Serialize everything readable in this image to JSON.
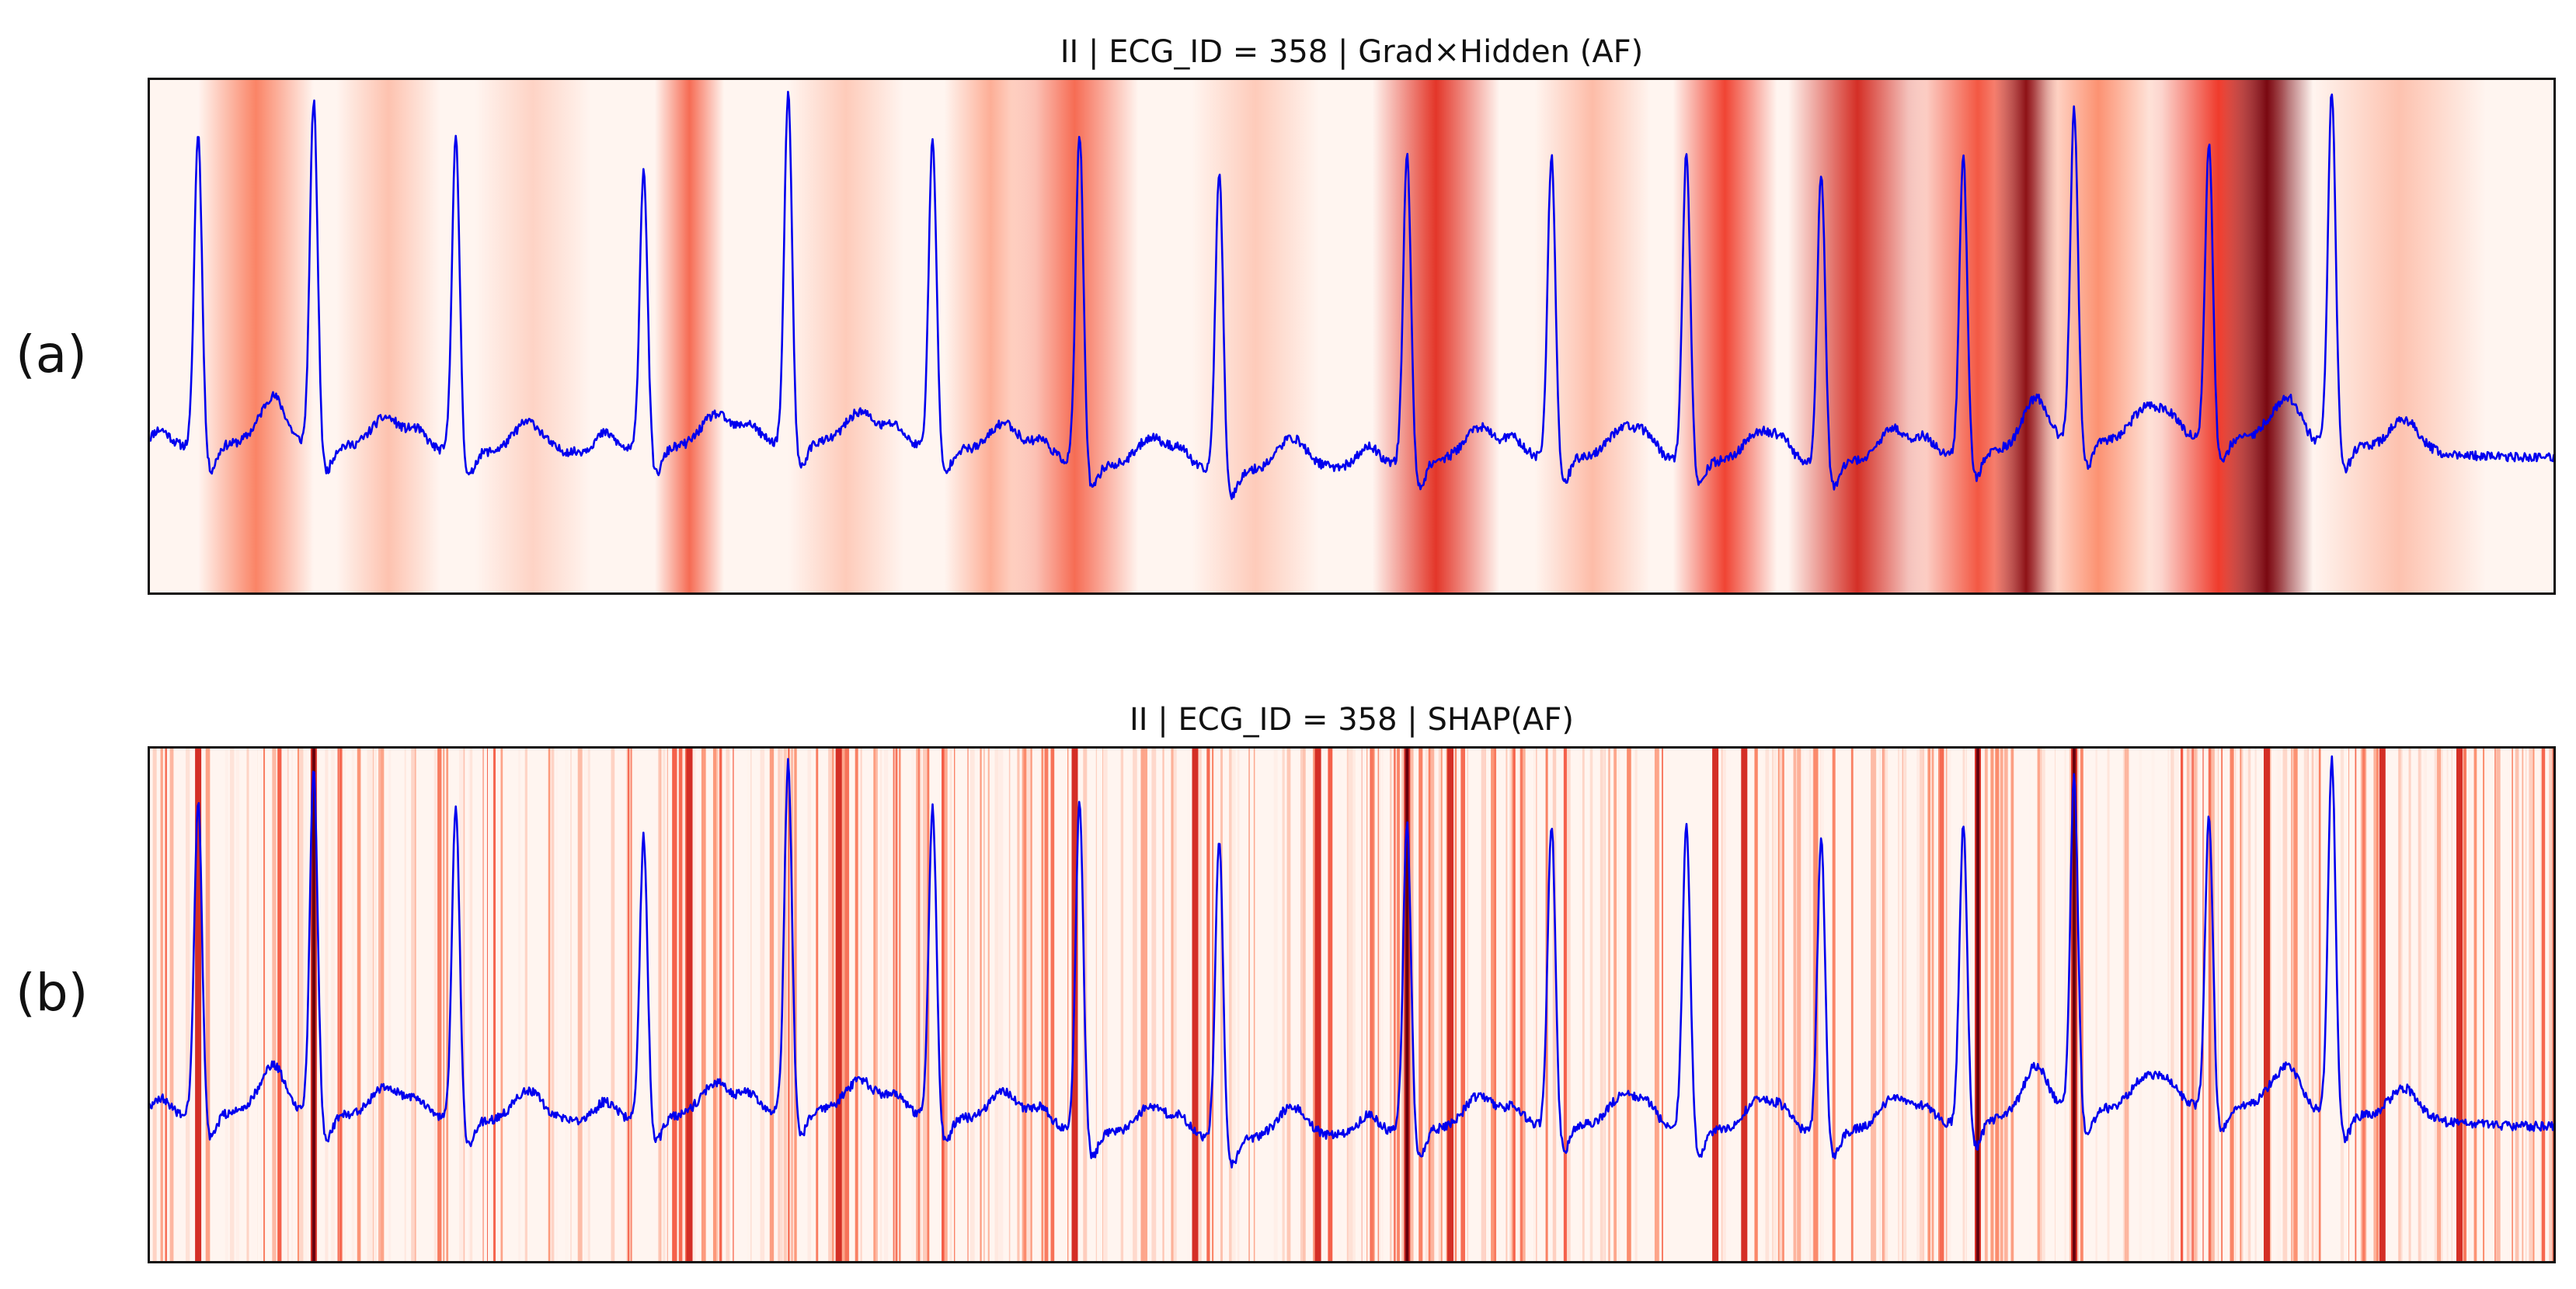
{
  "figure": {
    "panels": [
      {
        "label": "(a)",
        "title": "II | ECG_ID = 358 | Grad×Hidden (AF)"
      },
      {
        "label": "(b)",
        "title": "II | ECG_ID = 358 | SHAP(AF)"
      }
    ]
  },
  "chart_data": [
    {
      "type": "line",
      "title": "II | ECG_ID = 358 | Grad×Hidden (AF)",
      "xlabel": "",
      "ylabel": "",
      "grid": false,
      "signal_color": "#0000ee",
      "heatmap_colormap": "Reds",
      "r_peak_positions": [
        0.021,
        0.069,
        0.128,
        0.206,
        0.266,
        0.326,
        0.387,
        0.445,
        0.523,
        0.583,
        0.639,
        0.695,
        0.754,
        0.8,
        0.856,
        0.907
      ],
      "r_peak_heights": [
        0.88,
        0.94,
        0.88,
        0.82,
        0.95,
        0.87,
        0.91,
        0.85,
        0.87,
        0.86,
        0.87,
        0.84,
        0.85,
        0.92,
        0.84,
        0.96
      ],
      "attribution_bands": [
        {
          "x": 0.045,
          "intensity": 0.4,
          "width": 0.02
        },
        {
          "x": 0.1,
          "intensity": 0.18,
          "width": 0.018
        },
        {
          "x": 0.16,
          "intensity": 0.12,
          "width": 0.02
        },
        {
          "x": 0.225,
          "intensity": 0.48,
          "width": 0.012
        },
        {
          "x": 0.29,
          "intensity": 0.15,
          "width": 0.02
        },
        {
          "x": 0.35,
          "intensity": 0.25,
          "width": 0.016
        },
        {
          "x": 0.385,
          "intensity": 0.48,
          "width": 0.022
        },
        {
          "x": 0.46,
          "intensity": 0.15,
          "width": 0.022
        },
        {
          "x": 0.535,
          "intensity": 0.68,
          "width": 0.022
        },
        {
          "x": 0.6,
          "intensity": 0.2,
          "width": 0.02
        },
        {
          "x": 0.655,
          "intensity": 0.62,
          "width": 0.018
        },
        {
          "x": 0.71,
          "intensity": 0.72,
          "width": 0.024
        },
        {
          "x": 0.76,
          "intensity": 0.55,
          "width": 0.024
        },
        {
          "x": 0.78,
          "intensity": 0.9,
          "width": 0.011
        },
        {
          "x": 0.81,
          "intensity": 0.35,
          "width": 0.022
        },
        {
          "x": 0.86,
          "intensity": 0.65,
          "width": 0.024
        },
        {
          "x": 0.88,
          "intensity": 0.95,
          "width": 0.016
        },
        {
          "x": 0.935,
          "intensity": 0.18,
          "width": 0.03
        }
      ]
    },
    {
      "type": "line",
      "title": "II | ECG_ID = 358 | SHAP(AF)",
      "xlabel": "",
      "ylabel": "",
      "grid": false,
      "signal_color": "#0000ee",
      "heatmap_colormap": "Reds",
      "r_peak_positions": [
        0.021,
        0.069,
        0.128,
        0.206,
        0.266,
        0.326,
        0.387,
        0.445,
        0.523,
        0.583,
        0.639,
        0.695,
        0.754,
        0.8,
        0.856,
        0.907
      ],
      "r_peak_heights": [
        0.88,
        0.94,
        0.88,
        0.82,
        0.95,
        0.87,
        0.91,
        0.85,
        0.87,
        0.86,
        0.87,
        0.84,
        0.85,
        0.92,
        0.84,
        0.96
      ],
      "strong_lines": [
        0.021,
        0.069,
        0.225,
        0.287,
        0.385,
        0.435,
        0.486,
        0.523,
        0.541,
        0.651,
        0.663,
        0.76,
        0.8,
        0.88,
        0.928,
        0.96
      ],
      "darkest_lines": [
        0.069,
        0.523,
        0.76,
        0.8
      ]
    }
  ]
}
